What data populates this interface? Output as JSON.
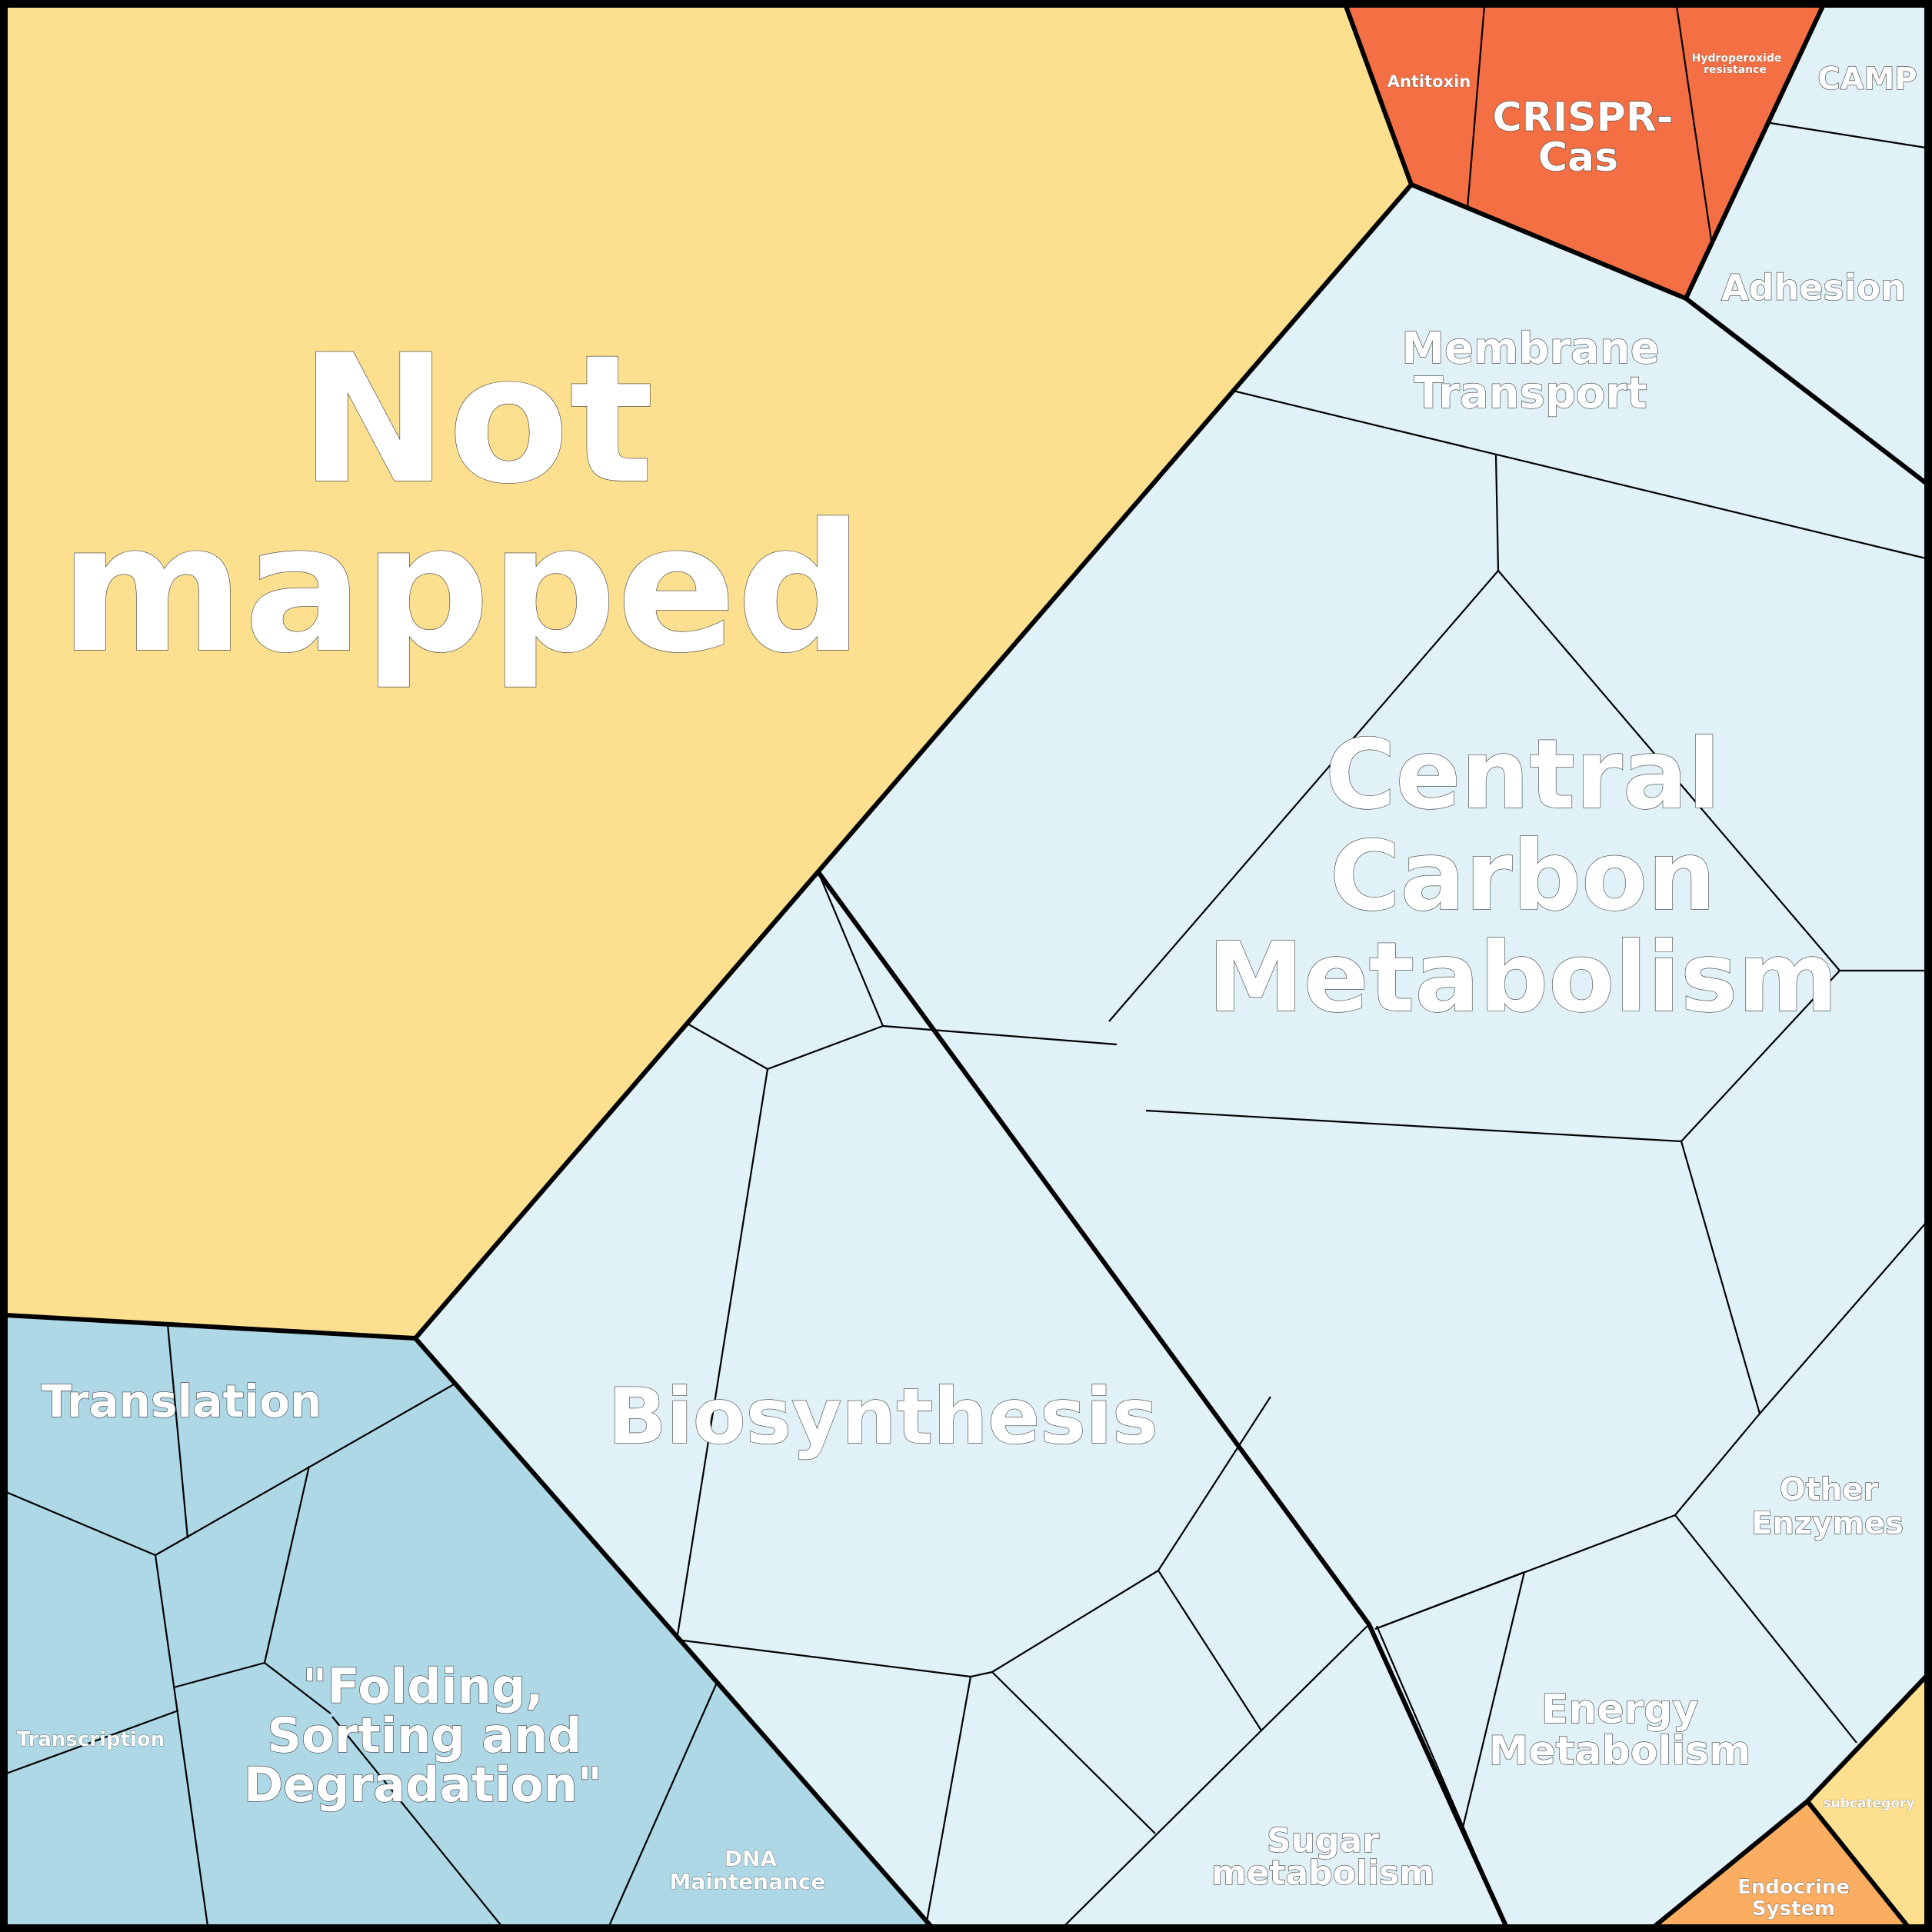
{
  "colors": {
    "not_mapped": "#fcdf8f",
    "central_group": "#e0f1f7",
    "info_group": "#aed8e6",
    "crispr_group": "#f46f43",
    "subcategory": "#fcdf8f",
    "endocrine": "#fbae62",
    "edge": "#000000",
    "label": "#ffffff"
  },
  "labels": {
    "not_mapped": [
      "Not",
      "mapped"
    ],
    "central_carbon": [
      "Central",
      "Carbon",
      "Metabolism"
    ],
    "biosynthesis": "Biosynthesis",
    "membrane_transport": [
      "Membrane",
      "Transport"
    ],
    "adhesion": "Adhesion",
    "camp": "CAMP",
    "crispr": [
      "CRISPR-",
      "Cas"
    ],
    "antitoxin": "Antitoxin",
    "hydroperoxide": [
      "Hydroperoxide",
      "resistance"
    ],
    "translation": "Translation",
    "transcription": "Transcription",
    "folding": [
      "\"Folding,",
      "Sorting and",
      "Degradation\""
    ],
    "dna_maintenance": [
      "DNA",
      "Maintenance"
    ],
    "other_enzymes": [
      "Other",
      "Enzymes"
    ],
    "energy_metabolism": [
      "Energy",
      "Metabolism"
    ],
    "sugar_metabolism": [
      "Sugar",
      "metabolism"
    ],
    "subcategory": "subcategory",
    "endocrine": [
      "Endocrine",
      "System"
    ]
  }
}
